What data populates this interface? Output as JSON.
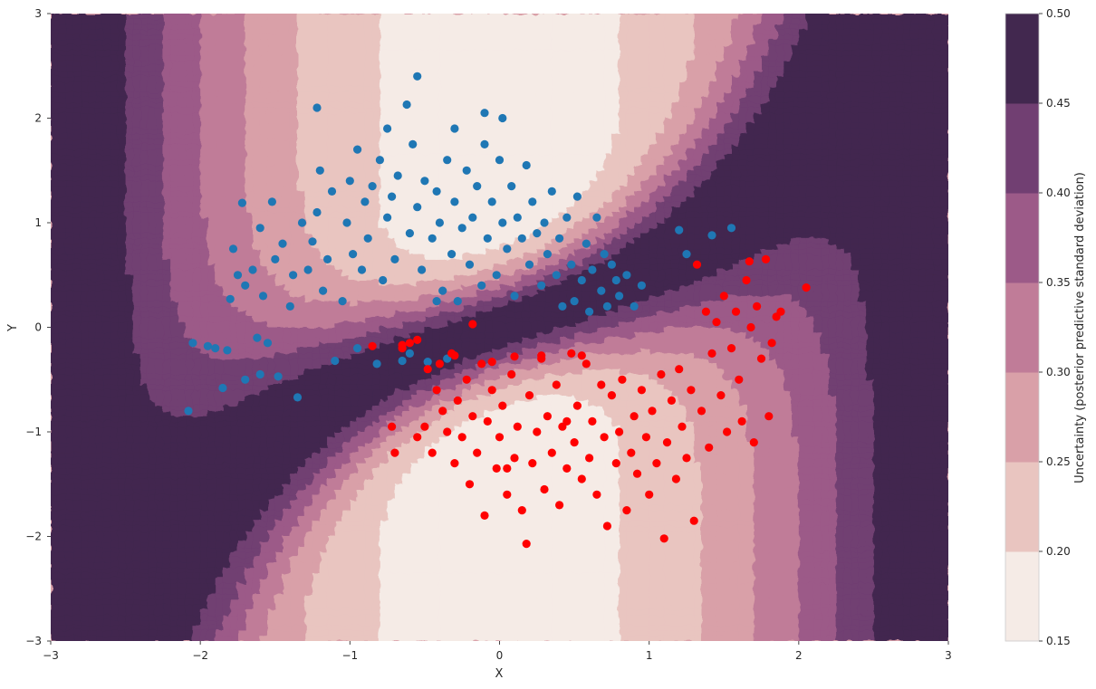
{
  "chart_data": {
    "type": "contour_scatter",
    "xlabel": "X",
    "ylabel": "Y",
    "xlim": [
      -3,
      3
    ],
    "ylim": [
      -3,
      3
    ],
    "x_ticks": [
      -3,
      -2,
      -1,
      0,
      1,
      2,
      3
    ],
    "y_ticks": [
      -3,
      -2,
      -1,
      0,
      1,
      2,
      3
    ],
    "x_tick_labels": [
      "−3",
      "−2",
      "−1",
      "0",
      "1",
      "2",
      "3"
    ],
    "y_tick_labels": [
      "−3",
      "−2",
      "−1",
      "0",
      "1",
      "2",
      "3"
    ],
    "grid": false,
    "colorbar": {
      "label": "Uncertainty (posterior predictive standard deviation)",
      "levels": [
        0.15,
        0.2,
        0.25,
        0.3,
        0.35,
        0.4,
        0.45,
        0.5
      ],
      "tick_labels": [
        "0.15",
        "0.20",
        "0.25",
        "0.30",
        "0.35",
        "0.40",
        "0.45",
        "0.50"
      ],
      "colors": [
        "#f5ebe6",
        "#e9c5c0",
        "#d9a0a8",
        "#c07c98",
        "#9c5a88",
        "#713f72",
        "#42284f"
      ]
    },
    "series": [
      {
        "color": "#1f77b4",
        "marker": "circle",
        "points": [
          [
            -2.08,
            -0.8
          ],
          [
            -2.05,
            -0.15
          ],
          [
            -1.95,
            -0.18
          ],
          [
            -1.9,
            -0.2
          ],
          [
            -1.85,
            -0.58
          ],
          [
            -1.82,
            -0.22
          ],
          [
            -1.8,
            0.27
          ],
          [
            -1.78,
            0.75
          ],
          [
            -1.75,
            0.5
          ],
          [
            -1.72,
            1.19
          ],
          [
            -1.7,
            -0.5
          ],
          [
            -1.7,
            0.4
          ],
          [
            -1.65,
            0.55
          ],
          [
            -1.62,
            -0.1
          ],
          [
            -1.6,
            -0.45
          ],
          [
            -1.6,
            0.95
          ],
          [
            -1.58,
            0.3
          ],
          [
            -1.55,
            -0.15
          ],
          [
            -1.52,
            1.2
          ],
          [
            -1.5,
            0.65
          ],
          [
            -1.48,
            -0.47
          ],
          [
            -1.45,
            0.8
          ],
          [
            -1.4,
            0.2
          ],
          [
            -1.38,
            0.5
          ],
          [
            -1.35,
            -0.67
          ],
          [
            -1.32,
            1.0
          ],
          [
            -1.28,
            0.55
          ],
          [
            -1.25,
            0.82
          ],
          [
            -1.22,
            1.1
          ],
          [
            -1.2,
            1.5
          ],
          [
            -1.18,
            0.35
          ],
          [
            -1.15,
            0.65
          ],
          [
            -1.12,
            1.3
          ],
          [
            -1.1,
            -0.32
          ],
          [
            -1.05,
            0.25
          ],
          [
            -1.02,
            1.0
          ],
          [
            -1.0,
            1.4
          ],
          [
            -0.98,
            0.7
          ],
          [
            -0.95,
            1.7
          ],
          [
            -0.92,
            0.55
          ],
          [
            -0.9,
            1.2
          ],
          [
            -0.88,
            0.85
          ],
          [
            -0.85,
            1.35
          ],
          [
            -0.82,
            -0.35
          ],
          [
            -0.8,
            1.6
          ],
          [
            -0.78,
            0.45
          ],
          [
            -0.75,
            1.05
          ],
          [
            -0.72,
            1.25
          ],
          [
            -0.7,
            0.65
          ],
          [
            -0.68,
            1.45
          ],
          [
            -0.65,
            -0.32
          ],
          [
            -0.62,
            2.13
          ],
          [
            -0.6,
            0.9
          ],
          [
            -0.58,
            1.75
          ],
          [
            -0.55,
            1.15
          ],
          [
            -0.52,
            0.55
          ],
          [
            -0.5,
            1.4
          ],
          [
            -0.48,
            -0.33
          ],
          [
            -0.45,
            0.85
          ],
          [
            -0.42,
            1.3
          ],
          [
            -0.4,
            1.0
          ],
          [
            -0.38,
            0.35
          ],
          [
            -0.35,
            1.6
          ],
          [
            -0.32,
            0.7
          ],
          [
            -0.3,
            1.2
          ],
          [
            -0.28,
            0.25
          ],
          [
            -0.25,
            0.95
          ],
          [
            -0.22,
            1.5
          ],
          [
            -0.2,
            0.6
          ],
          [
            -0.18,
            1.05
          ],
          [
            -0.15,
            1.35
          ],
          [
            -0.12,
            0.4
          ],
          [
            -0.1,
            1.75
          ],
          [
            -0.08,
            0.85
          ],
          [
            -0.05,
            1.2
          ],
          [
            -0.02,
            0.5
          ],
          [
            0.0,
            1.6
          ],
          [
            0.02,
            1.0
          ],
          [
            0.05,
            0.75
          ],
          [
            0.08,
            1.35
          ],
          [
            0.1,
            0.3
          ],
          [
            0.12,
            1.05
          ],
          [
            0.15,
            0.85
          ],
          [
            0.18,
            1.55
          ],
          [
            0.2,
            0.6
          ],
          [
            0.22,
            1.2
          ],
          [
            0.25,
            0.9
          ],
          [
            0.28,
            0.4
          ],
          [
            0.3,
            1.0
          ],
          [
            0.32,
            0.7
          ],
          [
            0.35,
            1.3
          ],
          [
            0.38,
            0.5
          ],
          [
            0.4,
            0.85
          ],
          [
            0.42,
            0.2
          ],
          [
            0.45,
            1.05
          ],
          [
            0.48,
            0.6
          ],
          [
            0.5,
            0.25
          ],
          [
            0.52,
            1.25
          ],
          [
            0.55,
            0.45
          ],
          [
            0.58,
            0.8
          ],
          [
            0.6,
            0.15
          ],
          [
            0.62,
            0.55
          ],
          [
            0.65,
            1.05
          ],
          [
            0.68,
            0.35
          ],
          [
            0.7,
            0.7
          ],
          [
            0.72,
            0.2
          ],
          [
            0.75,
            0.6
          ],
          [
            0.78,
            0.45
          ],
          [
            0.8,
            0.3
          ],
          [
            0.85,
            0.5
          ],
          [
            0.9,
            0.2
          ],
          [
            0.95,
            0.4
          ],
          [
            1.2,
            0.93
          ],
          [
            1.25,
            0.7
          ],
          [
            1.42,
            0.88
          ],
          [
            1.55,
            0.95
          ],
          [
            -0.95,
            -0.2
          ],
          [
            -0.6,
            -0.25
          ],
          [
            -0.42,
            0.25
          ],
          [
            -0.35,
            -0.3
          ],
          [
            -1.22,
            2.1
          ],
          [
            -0.1,
            2.05
          ],
          [
            0.02,
            2.0
          ],
          [
            -0.55,
            2.4
          ],
          [
            -0.75,
            1.9
          ],
          [
            -0.3,
            1.9
          ]
        ]
      },
      {
        "color": "#ff0000",
        "marker": "circle",
        "points": [
          [
            -0.85,
            -0.18
          ],
          [
            -0.72,
            -0.95
          ],
          [
            -0.7,
            -1.2
          ],
          [
            -0.65,
            -0.17
          ],
          [
            -0.6,
            -0.15
          ],
          [
            -0.55,
            -0.12
          ],
          [
            -0.5,
            -0.95
          ],
          [
            -0.48,
            -0.4
          ],
          [
            -0.45,
            -1.2
          ],
          [
            -0.42,
            -0.6
          ],
          [
            -0.4,
            -0.35
          ],
          [
            -0.38,
            -0.8
          ],
          [
            -0.35,
            -1.0
          ],
          [
            -0.32,
            -0.25
          ],
          [
            -0.3,
            -1.3
          ],
          [
            -0.28,
            -0.7
          ],
          [
            -0.25,
            -1.05
          ],
          [
            -0.22,
            -0.5
          ],
          [
            -0.2,
            -1.5
          ],
          [
            -0.18,
            -0.85
          ],
          [
            -0.15,
            -1.2
          ],
          [
            -0.12,
            -0.35
          ],
          [
            -0.1,
            -1.8
          ],
          [
            -0.08,
            -0.9
          ],
          [
            -0.05,
            -0.6
          ],
          [
            -0.02,
            -1.35
          ],
          [
            0.0,
            -1.05
          ],
          [
            0.02,
            -0.75
          ],
          [
            0.05,
            -1.6
          ],
          [
            0.08,
            -0.45
          ],
          [
            0.1,
            -1.25
          ],
          [
            0.12,
            -0.95
          ],
          [
            0.15,
            -1.75
          ],
          [
            0.18,
            -2.07
          ],
          [
            0.2,
            -0.65
          ],
          [
            0.22,
            -1.3
          ],
          [
            0.25,
            -1.0
          ],
          [
            0.28,
            -0.3
          ],
          [
            0.3,
            -1.55
          ],
          [
            0.32,
            -0.85
          ],
          [
            0.35,
            -1.2
          ],
          [
            0.38,
            -0.55
          ],
          [
            0.4,
            -1.7
          ],
          [
            0.42,
            -0.95
          ],
          [
            0.45,
            -1.35
          ],
          [
            0.48,
            -0.25
          ],
          [
            0.5,
            -1.1
          ],
          [
            0.52,
            -0.75
          ],
          [
            0.55,
            -1.45
          ],
          [
            0.58,
            -0.35
          ],
          [
            0.6,
            -1.25
          ],
          [
            0.62,
            -0.9
          ],
          [
            0.65,
            -1.6
          ],
          [
            0.68,
            -0.55
          ],
          [
            0.7,
            -1.05
          ],
          [
            0.72,
            -1.9
          ],
          [
            0.75,
            -0.65
          ],
          [
            0.78,
            -1.3
          ],
          [
            0.8,
            -1.0
          ],
          [
            0.82,
            -0.5
          ],
          [
            0.85,
            -1.75
          ],
          [
            0.88,
            -1.2
          ],
          [
            0.9,
            -0.85
          ],
          [
            0.92,
            -1.4
          ],
          [
            0.95,
            -0.6
          ],
          [
            0.98,
            -1.05
          ],
          [
            1.0,
            -1.6
          ],
          [
            1.02,
            -0.8
          ],
          [
            1.05,
            -1.3
          ],
          [
            1.08,
            -0.45
          ],
          [
            1.1,
            -2.02
          ],
          [
            1.12,
            -1.1
          ],
          [
            1.15,
            -0.7
          ],
          [
            1.18,
            -1.45
          ],
          [
            1.2,
            -0.4
          ],
          [
            1.22,
            -0.95
          ],
          [
            1.25,
            -1.25
          ],
          [
            1.28,
            -0.6
          ],
          [
            1.3,
            -1.85
          ],
          [
            1.32,
            0.6
          ],
          [
            1.35,
            -0.8
          ],
          [
            1.38,
            0.15
          ],
          [
            1.4,
            -1.15
          ],
          [
            1.42,
            -0.25
          ],
          [
            1.45,
            0.05
          ],
          [
            1.48,
            -0.65
          ],
          [
            1.5,
            0.3
          ],
          [
            1.52,
            -1.0
          ],
          [
            1.55,
            -0.2
          ],
          [
            1.58,
            0.15
          ],
          [
            1.6,
            -0.5
          ],
          [
            1.62,
            -0.9
          ],
          [
            1.65,
            0.45
          ],
          [
            1.68,
            0.0
          ],
          [
            1.7,
            -1.1
          ],
          [
            1.72,
            0.2
          ],
          [
            1.75,
            -0.3
          ],
          [
            1.78,
            0.65
          ],
          [
            1.8,
            -0.85
          ],
          [
            1.82,
            -0.15
          ],
          [
            1.85,
            0.1
          ],
          [
            1.88,
            0.15
          ],
          [
            2.05,
            0.38
          ],
          [
            1.67,
            0.63
          ],
          [
            -0.3,
            -0.27
          ],
          [
            -0.65,
            -0.2
          ],
          [
            -0.18,
            0.03
          ],
          [
            0.28,
            -0.27
          ],
          [
            0.1,
            -0.28
          ],
          [
            0.55,
            -0.27
          ],
          [
            -0.05,
            -0.33
          ],
          [
            0.45,
            -0.9
          ],
          [
            -0.55,
            -1.05
          ],
          [
            0.05,
            -1.35
          ]
        ]
      }
    ]
  }
}
